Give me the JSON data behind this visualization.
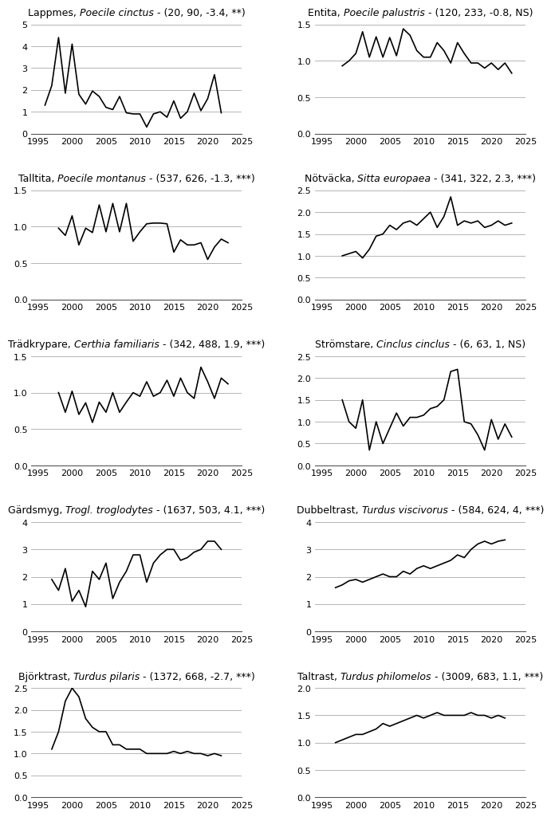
{
  "plots": [
    {
      "title_normal": "Lappmes, ",
      "title_italic": "Poecile cinctus",
      "title_rest": " - (20, 90, -3.4, **)",
      "ylim": [
        0,
        5
      ],
      "yticks": [
        0,
        1,
        2,
        3,
        4,
        5
      ],
      "years": [
        1996,
        1997,
        1998,
        1999,
        2000,
        2001,
        2002,
        2003,
        2004,
        2005,
        2006,
        2007,
        2008,
        2009,
        2010,
        2011,
        2012,
        2013,
        2014,
        2015,
        2016,
        2017,
        2018,
        2019,
        2020,
        2021,
        2022,
        2023
      ],
      "values": [
        1.3,
        2.2,
        4.4,
        1.85,
        4.1,
        1.8,
        1.35,
        1.95,
        1.7,
        1.2,
        1.1,
        1.7,
        0.95,
        0.9,
        0.9,
        0.3,
        0.9,
        1.0,
        0.75,
        1.5,
        0.7,
        1.0,
        1.85,
        1.05,
        1.6,
        2.7,
        0.95,
        null
      ]
    },
    {
      "title_normal": "Entita, ",
      "title_italic": "Poecile palustris",
      "title_rest": " - (120, 233, -0.8, NS)",
      "ylim": [
        0.0,
        1.5
      ],
      "yticks": [
        0.0,
        0.5,
        1.0,
        1.5
      ],
      "years": [
        1998,
        1999,
        2000,
        2001,
        2002,
        2003,
        2004,
        2005,
        2006,
        2007,
        2008,
        2009,
        2010,
        2011,
        2012,
        2013,
        2014,
        2015,
        2016,
        2017,
        2018,
        2019,
        2020,
        2021,
        2022,
        2023
      ],
      "values": [
        0.93,
        1.0,
        1.1,
        1.4,
        1.05,
        1.33,
        1.05,
        1.32,
        1.07,
        1.44,
        1.35,
        1.14,
        1.05,
        1.05,
        1.25,
        1.14,
        0.97,
        1.25,
        1.1,
        0.97,
        0.97,
        0.9,
        0.97,
        0.88,
        0.97,
        0.83
      ]
    },
    {
      "title_normal": "Talltita, ",
      "title_italic": "Poecile montanus",
      "title_rest": " - (537, 626, -1.3, ***)",
      "ylim": [
        0.0,
        1.5
      ],
      "yticks": [
        0.0,
        0.5,
        1.0,
        1.5
      ],
      "years": [
        1998,
        1999,
        2000,
        2001,
        2002,
        2003,
        2004,
        2005,
        2006,
        2007,
        2008,
        2009,
        2010,
        2011,
        2012,
        2013,
        2014,
        2015,
        2016,
        2017,
        2018,
        2019,
        2020,
        2021,
        2022,
        2023
      ],
      "values": [
        0.98,
        0.88,
        1.15,
        0.75,
        0.98,
        0.92,
        1.3,
        0.93,
        1.32,
        0.93,
        1.32,
        0.8,
        0.93,
        1.04,
        1.05,
        1.05,
        1.04,
        0.65,
        0.82,
        0.75,
        0.75,
        0.78,
        0.55,
        0.72,
        0.83,
        0.78
      ]
    },
    {
      "title_normal": "Nötväcka, ",
      "title_italic": "Sitta europaea",
      "title_rest": " - (341, 322, 2.3, ***)",
      "ylim": [
        0.0,
        2.5
      ],
      "yticks": [
        0.0,
        0.5,
        1.0,
        1.5,
        2.0,
        2.5
      ],
      "years": [
        1998,
        1999,
        2000,
        2001,
        2002,
        2003,
        2004,
        2005,
        2006,
        2007,
        2008,
        2009,
        2010,
        2011,
        2012,
        2013,
        2014,
        2015,
        2016,
        2017,
        2018,
        2019,
        2020,
        2021,
        2022,
        2023
      ],
      "values": [
        1.0,
        1.05,
        1.1,
        0.95,
        1.15,
        1.45,
        1.5,
        1.7,
        1.6,
        1.75,
        1.8,
        1.7,
        1.85,
        2.0,
        1.65,
        1.9,
        2.35,
        1.7,
        1.8,
        1.75,
        1.8,
        1.65,
        1.7,
        1.8,
        1.7,
        1.75
      ]
    },
    {
      "title_normal": "Trädkrypare, ",
      "title_italic": "Certhia familiaris",
      "title_rest": " - (342, 488, 1.9, ***)",
      "ylim": [
        0.0,
        1.5
      ],
      "yticks": [
        0.0,
        0.5,
        1.0,
        1.5
      ],
      "years": [
        1998,
        1999,
        2000,
        2001,
        2002,
        2003,
        2004,
        2005,
        2006,
        2007,
        2008,
        2009,
        2010,
        2011,
        2012,
        2013,
        2014,
        2015,
        2016,
        2017,
        2018,
        2019,
        2020,
        2021,
        2022,
        2023
      ],
      "values": [
        1.0,
        0.73,
        1.02,
        0.7,
        0.86,
        0.59,
        0.87,
        0.73,
        1.0,
        0.73,
        0.87,
        1.0,
        0.95,
        1.15,
        0.95,
        1.0,
        1.17,
        0.95,
        1.2,
        1.0,
        0.92,
        1.35,
        1.15,
        0.92,
        1.2,
        1.12
      ]
    },
    {
      "title_normal": "Strömstare, ",
      "title_italic": "Cinclus cinclus",
      "title_rest": " - (6, 63, 1, NS)",
      "ylim": [
        0.0,
        2.5
      ],
      "yticks": [
        0.0,
        0.5,
        1.0,
        1.5,
        2.0,
        2.5
      ],
      "years": [
        1998,
        1999,
        2000,
        2001,
        2002,
        2003,
        2004,
        2005,
        2006,
        2007,
        2008,
        2009,
        2010,
        2011,
        2012,
        2013,
        2014,
        2015,
        2016,
        2017,
        2018,
        2019,
        2020,
        2021,
        2022,
        2023
      ],
      "values": [
        1.5,
        1.0,
        0.85,
        1.5,
        0.35,
        1.0,
        0.5,
        0.85,
        1.2,
        0.9,
        1.1,
        1.1,
        1.15,
        1.3,
        1.35,
        1.5,
        2.15,
        2.2,
        1.0,
        0.95,
        0.7,
        0.35,
        1.05,
        0.6,
        0.95,
        0.65
      ]
    },
    {
      "title_normal": "Gärdsmyg, ",
      "title_italic": "Trogl. troglodytes",
      "title_rest": " - (1637, 503, 4.1, ***)",
      "ylim": [
        0,
        4
      ],
      "yticks": [
        0,
        1,
        2,
        3,
        4
      ],
      "years": [
        1997,
        1998,
        1999,
        2000,
        2001,
        2002,
        2003,
        2004,
        2005,
        2006,
        2007,
        2008,
        2009,
        2010,
        2011,
        2012,
        2013,
        2014,
        2015,
        2016,
        2017,
        2018,
        2019,
        2020,
        2021,
        2022
      ],
      "values": [
        1.9,
        1.5,
        2.3,
        1.1,
        1.5,
        0.9,
        2.2,
        1.9,
        2.5,
        1.2,
        1.8,
        2.2,
        2.8,
        2.8,
        1.8,
        2.5,
        2.8,
        3.0,
        3.0,
        2.6,
        2.7,
        2.9,
        3.0,
        3.3,
        3.3,
        3.0
      ]
    },
    {
      "title_normal": "Dubbeltrast, ",
      "title_italic": "Turdus viscivorus",
      "title_rest": " - (584, 624, 4, ***)",
      "ylim": [
        0,
        4
      ],
      "yticks": [
        0,
        1,
        2,
        3,
        4
      ],
      "years": [
        1997,
        1998,
        1999,
        2000,
        2001,
        2002,
        2003,
        2004,
        2005,
        2006,
        2007,
        2008,
        2009,
        2010,
        2011,
        2012,
        2013,
        2014,
        2015,
        2016,
        2017,
        2018,
        2019,
        2020,
        2021,
        2022
      ],
      "values": [
        1.6,
        1.7,
        1.85,
        1.9,
        1.8,
        1.9,
        2.0,
        2.1,
        2.0,
        2.0,
        2.2,
        2.1,
        2.3,
        2.4,
        2.3,
        2.4,
        2.5,
        2.6,
        2.8,
        2.7,
        3.0,
        3.2,
        3.3,
        3.2,
        3.3,
        3.35
      ]
    },
    {
      "title_normal": "Björktrast, ",
      "title_italic": "Turdus pilaris",
      "title_rest": " - (1372, 668, -2.7, ***)",
      "ylim": [
        0.0,
        2.5
      ],
      "yticks": [
        0.0,
        0.5,
        1.0,
        1.5,
        2.0,
        2.5
      ],
      "years": [
        1997,
        1998,
        1999,
        2000,
        2001,
        2002,
        2003,
        2004,
        2005,
        2006,
        2007,
        2008,
        2009,
        2010,
        2011,
        2012,
        2013,
        2014,
        2015,
        2016,
        2017,
        2018,
        2019,
        2020,
        2021,
        2022
      ],
      "values": [
        1.1,
        1.5,
        2.2,
        2.5,
        2.3,
        1.8,
        1.6,
        1.5,
        1.5,
        1.2,
        1.2,
        1.1,
        1.1,
        1.1,
        1.0,
        1.0,
        1.0,
        1.0,
        1.05,
        1.0,
        1.05,
        1.0,
        1.0,
        0.95,
        1.0,
        0.95
      ]
    },
    {
      "title_normal": "Taltrast, ",
      "title_italic": "Turdus philomelos",
      "title_rest": " - (3009, 683, 1.1, ***)",
      "ylim": [
        0.0,
        2.0
      ],
      "yticks": [
        0.0,
        0.5,
        1.0,
        1.5,
        2.0
      ],
      "years": [
        1997,
        1998,
        1999,
        2000,
        2001,
        2002,
        2003,
        2004,
        2005,
        2006,
        2007,
        2008,
        2009,
        2010,
        2011,
        2012,
        2013,
        2014,
        2015,
        2016,
        2017,
        2018,
        2019,
        2020,
        2021,
        2022
      ],
      "values": [
        1.0,
        1.05,
        1.1,
        1.15,
        1.15,
        1.2,
        1.25,
        1.35,
        1.3,
        1.35,
        1.4,
        1.45,
        1.5,
        1.45,
        1.5,
        1.55,
        1.5,
        1.5,
        1.5,
        1.5,
        1.55,
        1.5,
        1.5,
        1.45,
        1.5,
        1.45
      ]
    }
  ],
  "xlim": [
    1994,
    2025
  ],
  "xticks": [
    1995,
    2000,
    2005,
    2010,
    2015,
    2020,
    2025
  ],
  "line_color": "#000000",
  "line_width": 1.2,
  "bg_color": "#ffffff",
  "grid_color": "#aaaaaa",
  "title_fontsize": 9,
  "tick_fontsize": 8
}
